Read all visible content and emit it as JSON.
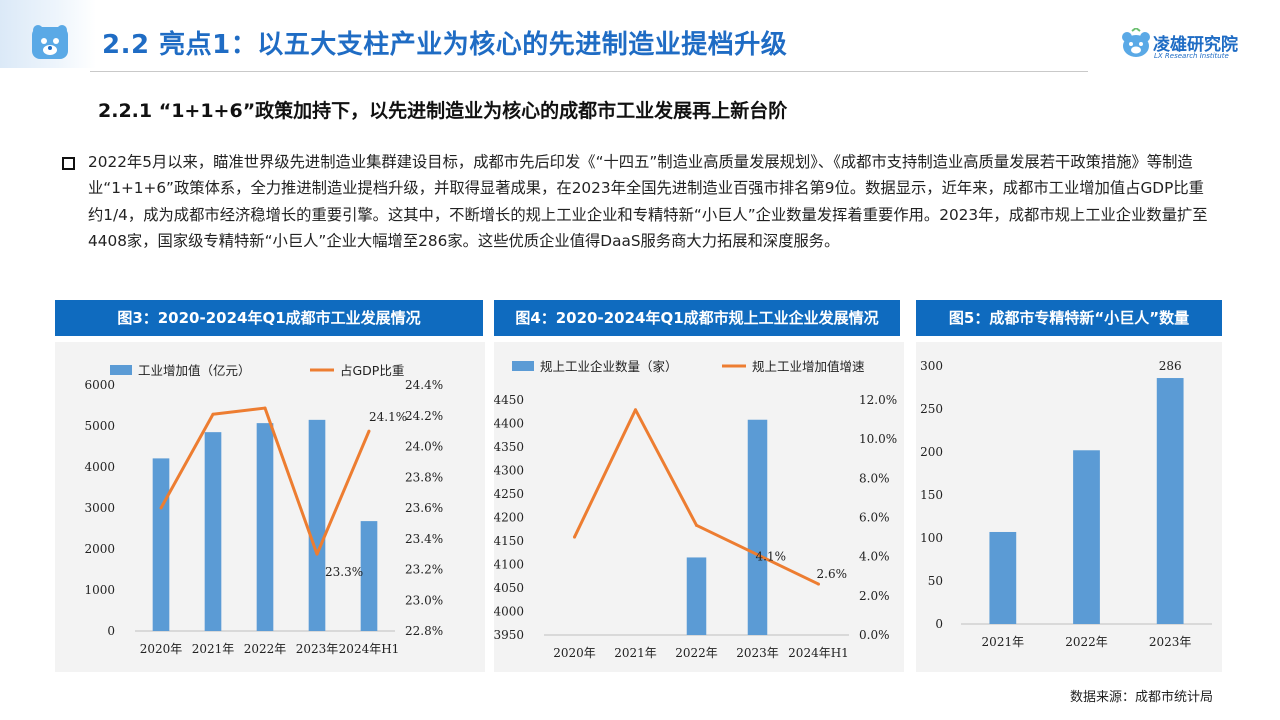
{
  "header": {
    "title": "2.2 亮点1：以五大支柱产业为核心的先进制造业提档升级",
    "brand_name": "凌雄研究院",
    "brand_sub": "LX Research Institute",
    "accent_color": "#1f6cc4"
  },
  "subtitle": "2.2.1 “1+1+6”政策加持下，以先进制造业为核心的成都市工业发展再上新台阶",
  "body": {
    "bullet_icon": "square-bullet-icon",
    "paragraph": "2022年5月以来，瞄准世界级先进制造业集群建设目标，成都市先后印发《“十四五”制造业高质量发展规划》、《成都市支持制造业高质量发展若干政策措施》等制造业“1+1+6”政策体系，全力推进制造业提档升级，并取得显著成果，在2023年全国先进制造业百强市排名第9位。数据显示，近年来，成都市工业增加值占GDP比重约1/4，成为成都市经济稳增长的重要引擎。这其中，不断增长的规上工业企业和专精特新“小巨人”企业数量发挥着重要作用。2023年，成都市规上工业企业数量扩至4408家，国家级专精特新“小巨人”企业大幅增至286家。这些优质企业值得DaaS服务商大力拓展和深度服务。"
  },
  "chart_headers": {
    "c3": "图3：2020-2024年Q1成都市工业发展情况",
    "c4": "图4：2020-2024年Q1成都市规上工业企业发展情况",
    "c5": "图5：成都市专精特新“小巨人”数量"
  },
  "colors": {
    "bar": "#5b9bd5",
    "line": "#ed7d31",
    "header_bg": "#0f6bbf",
    "panel_bg": "#f3f3f3"
  },
  "chart_data": [
    {
      "type": "bar+line",
      "categories": [
        "2020年",
        "2021年",
        "2022年",
        "2023年",
        "2024年H1"
      ],
      "series": [
        {
          "name": "工业增加值（亿元）",
          "type": "bar",
          "axis": "left",
          "values": [
            4210,
            4850,
            5070,
            5150,
            2680
          ]
        },
        {
          "name": "占GDP比重",
          "type": "line",
          "axis": "right",
          "values": [
            23.6,
            24.21,
            24.25,
            23.3,
            24.1
          ]
        }
      ],
      "y_left": {
        "min": 0,
        "max": 6000,
        "ticks": [
          "0",
          "1000",
          "2000",
          "3000",
          "4000",
          "5000",
          "6000"
        ]
      },
      "y_right": {
        "min": 22.8,
        "max": 24.4,
        "ticks": [
          "22.8%",
          "23.0%",
          "23.2%",
          "23.4%",
          "23.6%",
          "23.8%",
          "24.0%",
          "24.2%",
          "24.4%"
        ]
      },
      "annotations": [
        {
          "series": 1,
          "index": 3,
          "text": "23.3%"
        },
        {
          "series": 1,
          "index": 4,
          "text": "24.1%"
        }
      ],
      "legend": "top",
      "grid": false
    },
    {
      "type": "bar+line",
      "categories": [
        "2020年",
        "2021年",
        "2022年",
        "2023年",
        "2024年H1"
      ],
      "series": [
        {
          "name": "规上工业企业数量（家）",
          "type": "bar",
          "axis": "left",
          "values": [
            null,
            null,
            4115,
            4408,
            null
          ]
        },
        {
          "name": "规上工业增加值增速",
          "type": "line",
          "axis": "right",
          "values": [
            5.0,
            11.5,
            5.6,
            4.1,
            2.6
          ]
        }
      ],
      "y_left": {
        "min": 3950,
        "max": 4450,
        "ticks": [
          "3950",
          "4000",
          "4050",
          "4100",
          "4150",
          "4200",
          "4250",
          "4300",
          "4350",
          "4400",
          "4450"
        ]
      },
      "y_right": {
        "min": 0,
        "max": 12,
        "ticks": [
          "0.0%",
          "2.0%",
          "4.0%",
          "6.0%",
          "8.0%",
          "10.0%",
          "12.0%"
        ]
      },
      "annotations": [
        {
          "series": 1,
          "index": 3,
          "text": "4.1%"
        },
        {
          "series": 1,
          "index": 4,
          "text": "2.6%"
        }
      ],
      "legend": "top",
      "grid": false
    },
    {
      "type": "bar",
      "categories": [
        "2021年",
        "2022年",
        "2023年"
      ],
      "values": [
        107,
        202,
        286
      ],
      "y": {
        "min": 0,
        "max": 300,
        "ticks": [
          "0",
          "50",
          "100",
          "150",
          "200",
          "250",
          "300"
        ]
      },
      "annotations": [
        {
          "index": 2,
          "text": "286"
        }
      ],
      "grid": false
    }
  ],
  "source_note": "数据来源：成都市统计局"
}
